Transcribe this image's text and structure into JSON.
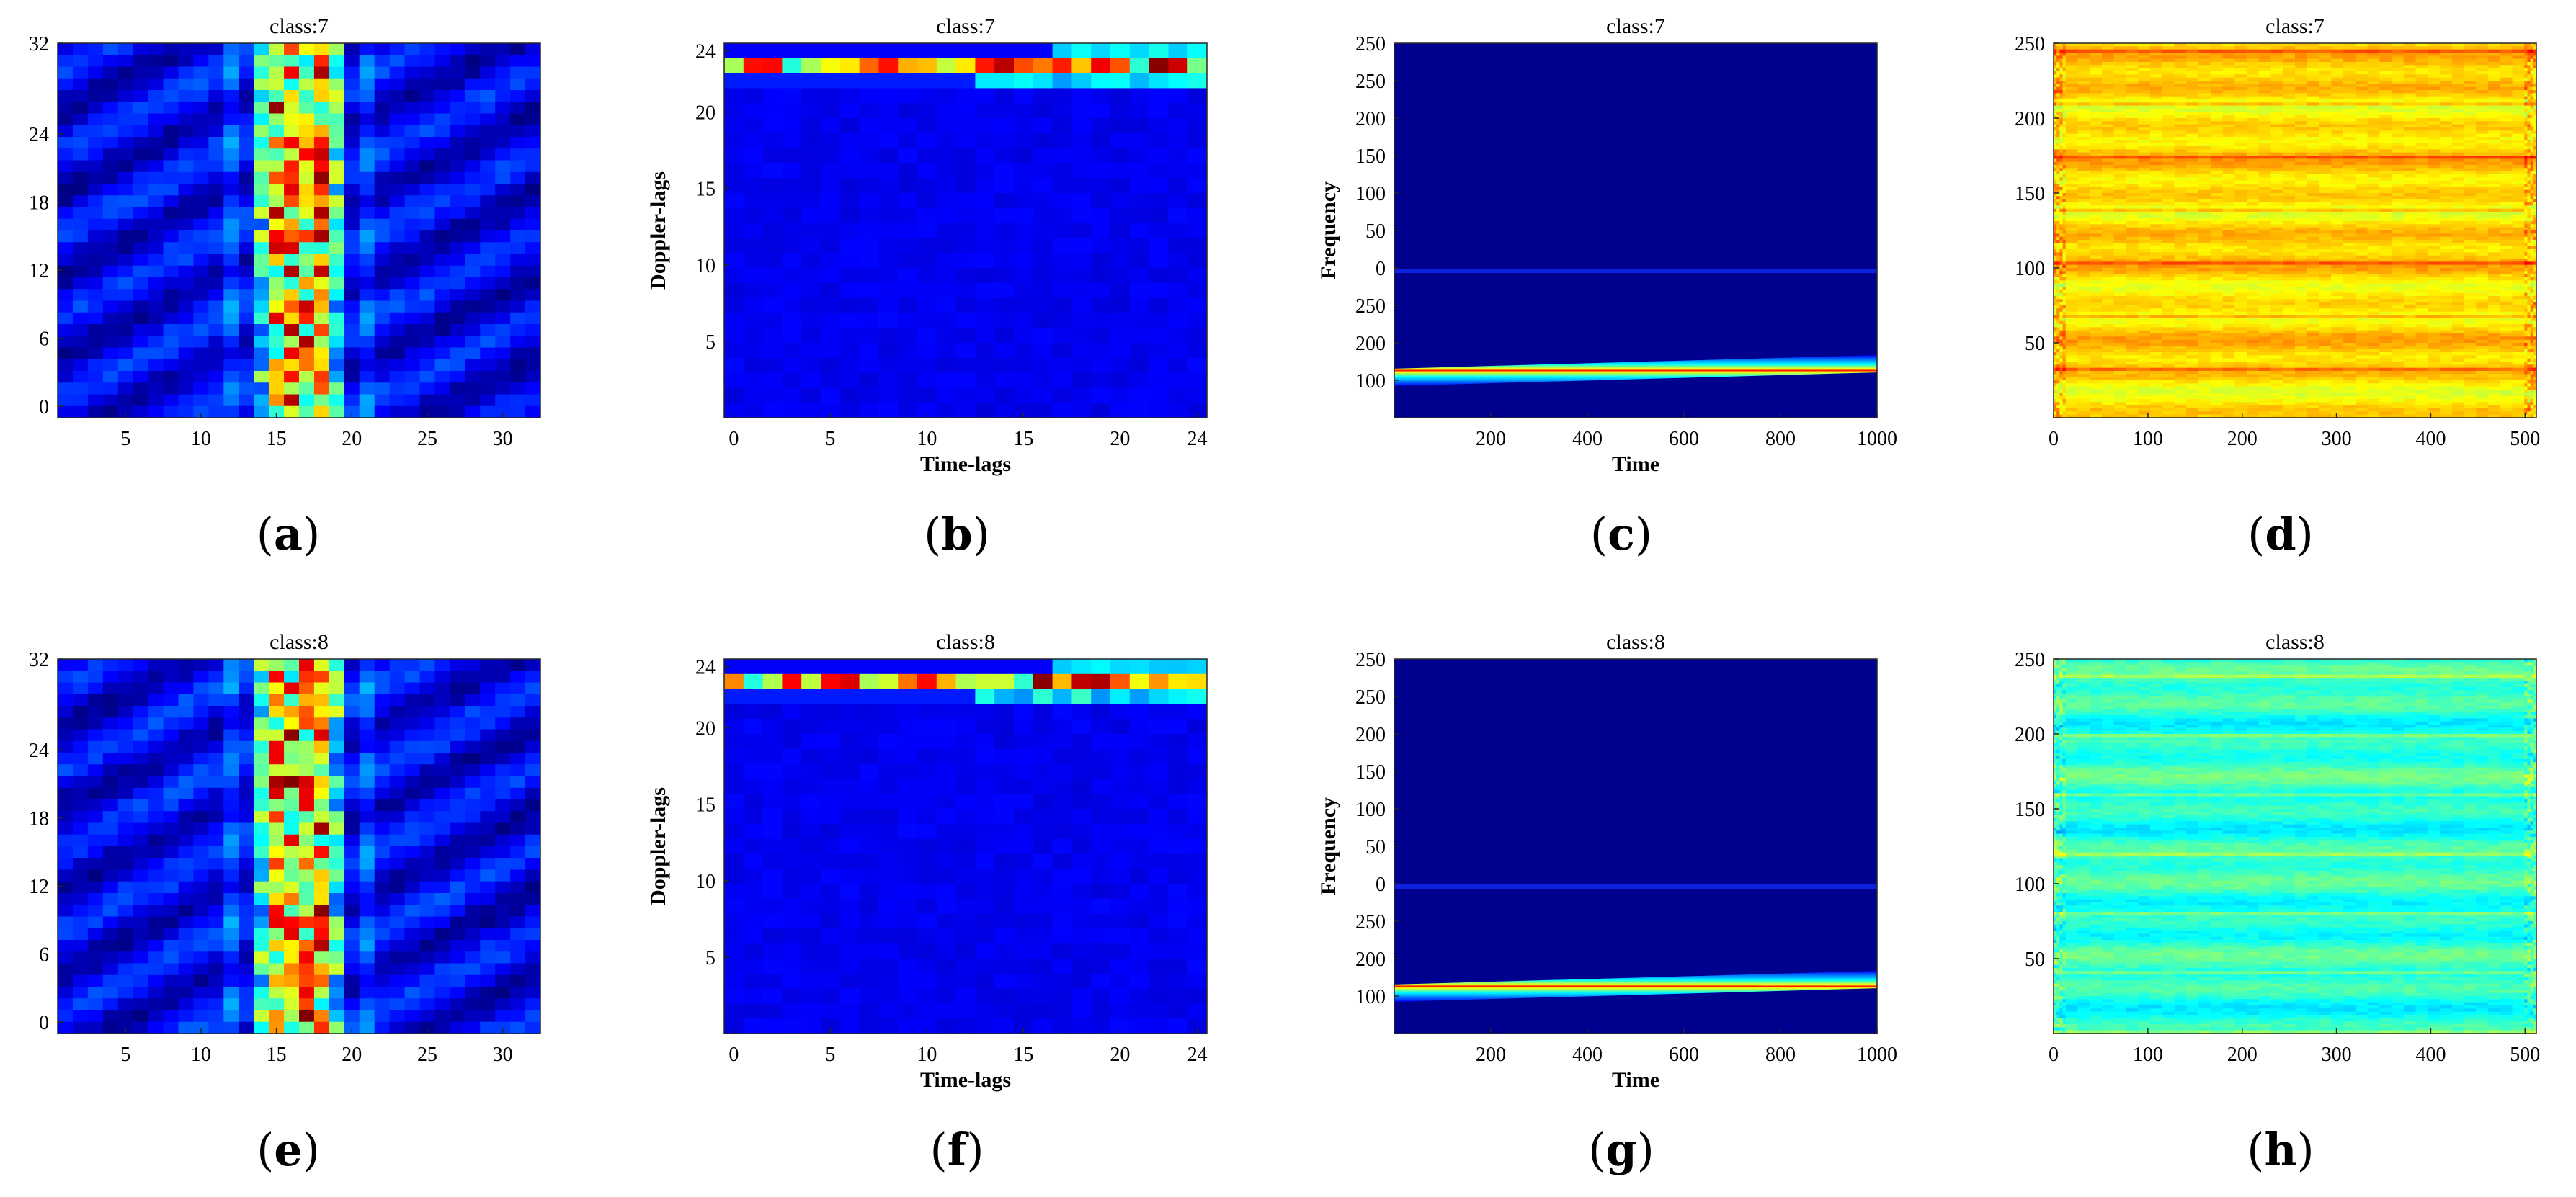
{
  "figure": {
    "panels": [
      {
        "id": "a",
        "label": "a",
        "caption": "(a)"
      },
      {
        "id": "b",
        "label": "b",
        "caption": "(b)"
      },
      {
        "id": "c",
        "label": "c",
        "caption": "(c)"
      },
      {
        "id": "d",
        "label": "d",
        "caption": "(d)"
      },
      {
        "id": "e",
        "label": "e",
        "caption": "(e)"
      },
      {
        "id": "f",
        "label": "f",
        "caption": "(f)"
      },
      {
        "id": "g",
        "label": "g",
        "caption": "(g)"
      },
      {
        "id": "h",
        "label": "h",
        "caption": "(h)"
      }
    ]
  },
  "colormap": {
    "name": "jet",
    "dark_blue": "#00008f",
    "blue": "#0000ff",
    "cyan": "#00ffff",
    "yellow": "#ffff00",
    "red": "#ff0000",
    "dark_red": "#800000"
  },
  "chart_data": [
    {
      "id": "a",
      "type": "heatmap",
      "title": "class:7",
      "xlabel": "",
      "ylabel": "",
      "xlim": [
        0.5,
        32.5
      ],
      "ylim": [
        -1,
        32
      ],
      "xticks": [
        5,
        10,
        15,
        20,
        25,
        30
      ],
      "xticklabels": [
        "5",
        "10",
        "15",
        "20",
        "25",
        "30"
      ],
      "yticks": [
        0,
        6,
        12,
        18,
        24,
        32
      ],
      "yticklabels": [
        "0",
        "6",
        "12",
        "18",
        "24",
        "32"
      ],
      "pattern": "vertical-band",
      "band_columns": [
        14,
        19
      ],
      "grid": [
        32,
        32
      ]
    },
    {
      "id": "b",
      "type": "heatmap",
      "title": "class:7",
      "xlabel": "Time-lags",
      "ylabel": "Doppler-lags",
      "xlim": [
        -0.5,
        24.5
      ],
      "ylim": [
        0,
        24.5
      ],
      "xticks": [
        0,
        5,
        10,
        15,
        20,
        24
      ],
      "xticklabels": [
        "0",
        "5",
        "10",
        "15",
        "20",
        "24"
      ],
      "yticks": [
        5,
        10,
        15,
        20,
        24
      ],
      "yticklabels": [
        "5",
        "10",
        "15",
        "20",
        "24"
      ],
      "pattern": "top-rows",
      "grid": [
        25,
        25
      ]
    },
    {
      "id": "c",
      "type": "heatmap",
      "title": "class:7",
      "xlabel": "Time",
      "ylabel": "Frequency",
      "xlim": [
        0,
        1000
      ],
      "ylim": [
        0,
        250
      ],
      "xticks": [
        200,
        400,
        600,
        800,
        1000
      ],
      "xticklabels": [
        "200",
        "400",
        "600",
        "800",
        "1000"
      ],
      "yticks": [
        25,
        50,
        75,
        100,
        125,
        150,
        175,
        200,
        225,
        250
      ],
      "yticklabels": [
        "100",
        "200",
        "250",
        "0",
        "50",
        "100",
        "150",
        "200",
        "250"
      ],
      "ytick_positions": [
        25,
        50,
        75,
        100,
        125,
        150,
        175,
        200,
        225
      ],
      "top_ytick": "250",
      "pattern": "chirp-line",
      "line_start": 27,
      "line_end": 36,
      "faint_line": 98
    },
    {
      "id": "d",
      "type": "heatmap",
      "title": "class:7",
      "xlabel": "",
      "ylabel": "",
      "xlim": [
        0,
        512
      ],
      "ylim": [
        0,
        250
      ],
      "xticks": [
        0,
        100,
        200,
        300,
        400,
        500
      ],
      "xticklabels": [
        "0",
        "100",
        "200",
        "300",
        "400",
        "500"
      ],
      "yticks": [
        50,
        100,
        150,
        200,
        250
      ],
      "yticklabels": [
        "50",
        "100",
        "150",
        "200",
        "250"
      ],
      "pattern": "yellow-texture"
    },
    {
      "id": "e",
      "type": "heatmap",
      "title": "class:8",
      "xlabel": "",
      "ylabel": "",
      "xlim": [
        0.5,
        32.5
      ],
      "ylim": [
        -1,
        32
      ],
      "xticks": [
        5,
        10,
        15,
        20,
        25,
        30
      ],
      "xticklabels": [
        "5",
        "10",
        "15",
        "20",
        "25",
        "30"
      ],
      "yticks": [
        0,
        6,
        12,
        18,
        24,
        32
      ],
      "yticklabels": [
        "0",
        "6",
        "12",
        "18",
        "24",
        "32"
      ],
      "pattern": "vertical-band",
      "band_columns": [
        14,
        19
      ],
      "grid": [
        32,
        32
      ]
    },
    {
      "id": "f",
      "type": "heatmap",
      "title": "class:8",
      "xlabel": "Time-lags",
      "ylabel": "Doppler-lags",
      "xlim": [
        -0.5,
        24.5
      ],
      "ylim": [
        0,
        24.5
      ],
      "xticks": [
        0,
        5,
        10,
        15,
        20,
        24
      ],
      "xticklabels": [
        "0",
        "5",
        "10",
        "15",
        "20",
        "24"
      ],
      "yticks": [
        5,
        10,
        15,
        20,
        24
      ],
      "yticklabels": [
        "5",
        "10",
        "15",
        "20",
        "24"
      ],
      "pattern": "top-rows",
      "grid": [
        25,
        25
      ]
    },
    {
      "id": "g",
      "type": "heatmap",
      "title": "class:8",
      "xlabel": "Time",
      "ylabel": "Frequency",
      "xlim": [
        0,
        1000
      ],
      "ylim": [
        0,
        250
      ],
      "xticks": [
        200,
        400,
        600,
        800,
        1000
      ],
      "xticklabels": [
        "200",
        "400",
        "600",
        "800",
        "1000"
      ],
      "yticks": [
        25,
        50,
        75,
        100,
        125,
        150,
        175,
        200,
        225,
        250
      ],
      "yticklabels": [
        "100",
        "200",
        "250",
        "0",
        "50",
        "100",
        "150",
        "200",
        "250"
      ],
      "ytick_positions": [
        25,
        50,
        75,
        100,
        125,
        150,
        175,
        200,
        225
      ],
      "top_ytick": "250",
      "pattern": "chirp-line",
      "line_start": 27,
      "line_end": 36,
      "faint_line": 98
    },
    {
      "id": "h",
      "type": "heatmap",
      "title": "class:8",
      "xlabel": "",
      "ylabel": "",
      "xlim": [
        0,
        512
      ],
      "ylim": [
        0,
        250
      ],
      "xticks": [
        0,
        100,
        200,
        300,
        400,
        500
      ],
      "xticklabels": [
        "0",
        "100",
        "200",
        "300",
        "400",
        "500"
      ],
      "yticks": [
        50,
        100,
        150,
        200,
        250
      ],
      "yticklabels": [
        "50",
        "100",
        "150",
        "200",
        "250"
      ],
      "pattern": "cyan-texture"
    }
  ]
}
